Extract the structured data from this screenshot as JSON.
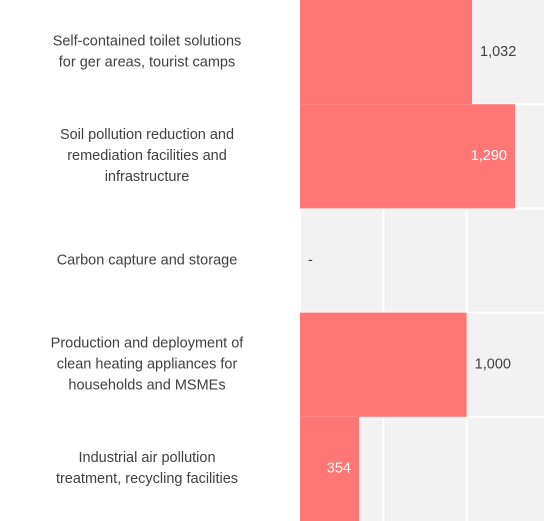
{
  "chart_data": {
    "type": "bar",
    "orientation": "horizontal",
    "categories": [
      [
        "Self-contained toilet solutions",
        "for ger areas, tourist camps"
      ],
      [
        "Soil pollution reduction and",
        "remediation facilities and",
        "infrastructure"
      ],
      [
        "Carbon capture and storage"
      ],
      [
        "Production and deployment of",
        "clean heating appliances for",
        "households and MSMEs"
      ],
      [
        "Industrial air pollution",
        "treatment, recycling facilities"
      ]
    ],
    "values": [
      1032,
      1290,
      null,
      1000,
      354
    ],
    "value_labels": [
      "1,032",
      "1,290",
      "-",
      "1,000",
      "354"
    ],
    "label_inside": [
      false,
      true,
      false,
      false,
      true
    ],
    "color": "#ff7675",
    "xlim": [
      0,
      1464
    ],
    "xticks": [
      0,
      500,
      1000
    ],
    "grid": true
  }
}
